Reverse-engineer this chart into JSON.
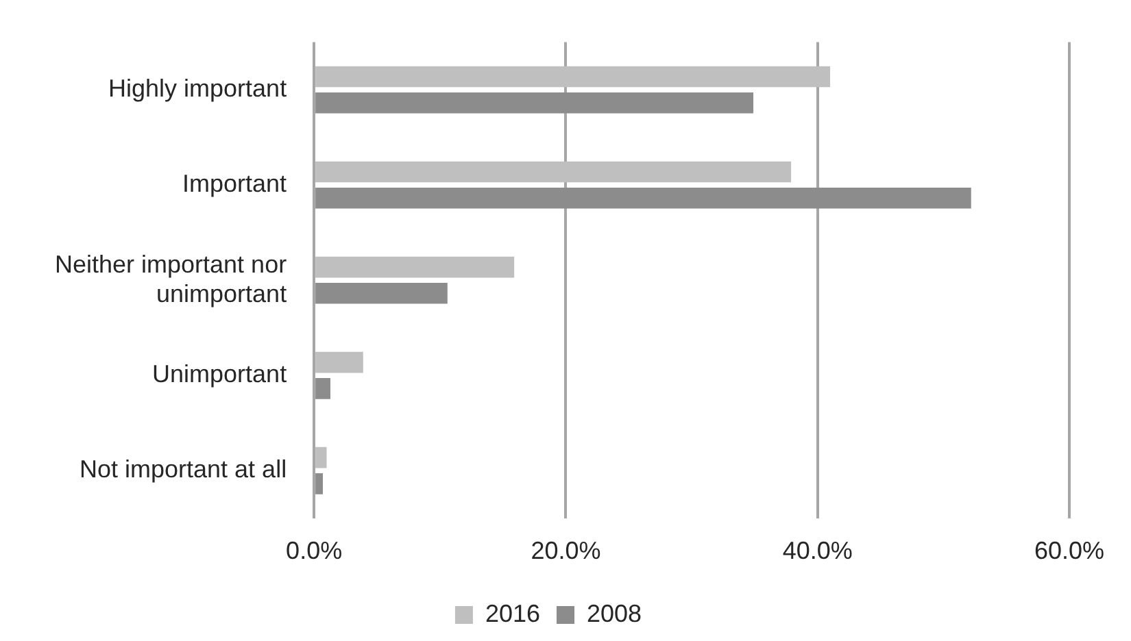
{
  "chart_data": {
    "type": "bar",
    "orientation": "horizontal",
    "categories": [
      "Highly important",
      "Important",
      "Neither important nor unimportant",
      "Unimportant",
      "Not important at all"
    ],
    "series": [
      {
        "name": "2016",
        "color": "#bfbfbf",
        "values": [
          41.0,
          37.9,
          15.9,
          3.9,
          1.0
        ]
      },
      {
        "name": "2008",
        "color": "#8c8c8c",
        "values": [
          34.9,
          52.2,
          10.6,
          1.3,
          0.7
        ]
      }
    ],
    "xlim": [
      0,
      60
    ],
    "xticks": [
      {
        "value": 0,
        "label": "0.0%"
      },
      {
        "value": 20,
        "label": "20.0%"
      },
      {
        "value": 40,
        "label": "40.0%"
      },
      {
        "value": 60,
        "label": "60.0%"
      }
    ],
    "grid": "x",
    "legend": "bottom"
  }
}
